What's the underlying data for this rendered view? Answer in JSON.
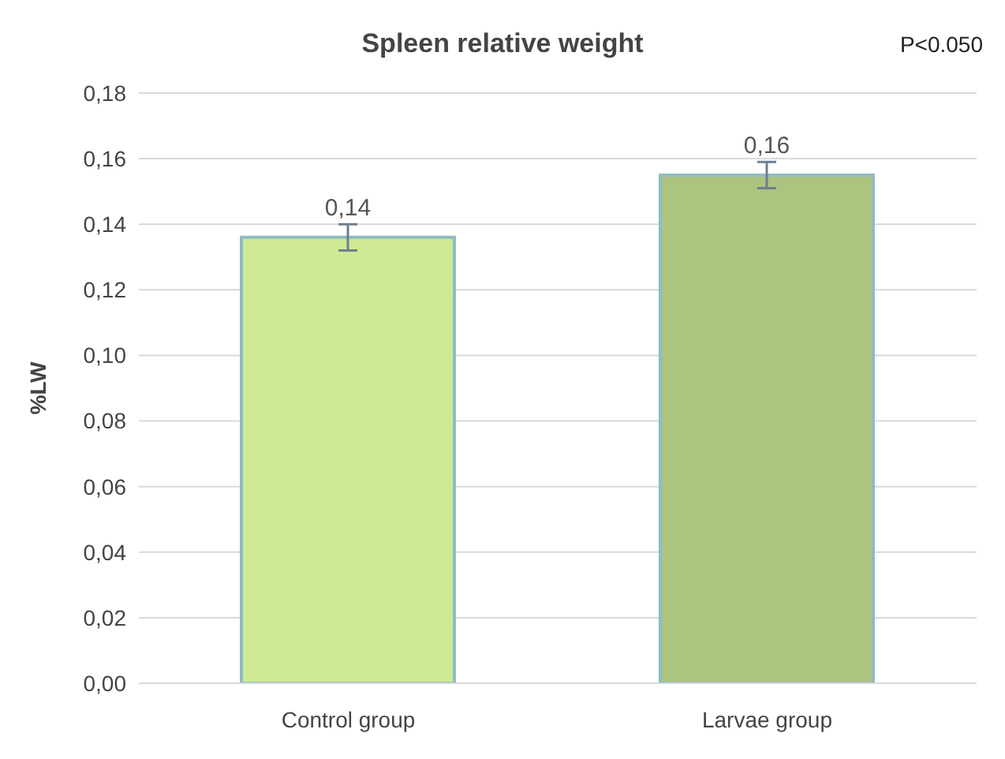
{
  "chart_data": {
    "type": "bar",
    "title": "Spleen relative weight",
    "ylabel": "%LW",
    "annotations": [
      "P<0.050"
    ],
    "categories": [
      "Control group",
      "Larvae group"
    ],
    "values": [
      0.136,
      0.155
    ],
    "colors": [
      "#d0e994",
      "#adc47f"
    ],
    "errors": [
      0.004,
      0.004
    ],
    "value_labels": [
      "0,14",
      "0,16"
    ],
    "ylim": [
      0,
      0.18
    ],
    "yticks": [
      {
        "value": 0,
        "label": "0,00"
      },
      {
        "value": 0.02,
        "label": "0,02"
      },
      {
        "value": 0.04,
        "label": "0,04"
      },
      {
        "value": 0.06,
        "label": "0,06"
      },
      {
        "value": 0.08,
        "label": "0,08"
      },
      {
        "value": 0.1,
        "label": "0,10"
      },
      {
        "value": 0.12,
        "label": "0,12"
      },
      {
        "value": 0.14,
        "label": "0,14"
      },
      {
        "value": 0.16,
        "label": "0,16"
      },
      {
        "value": 0.18,
        "label": "0,18"
      }
    ],
    "grid": "y"
  }
}
